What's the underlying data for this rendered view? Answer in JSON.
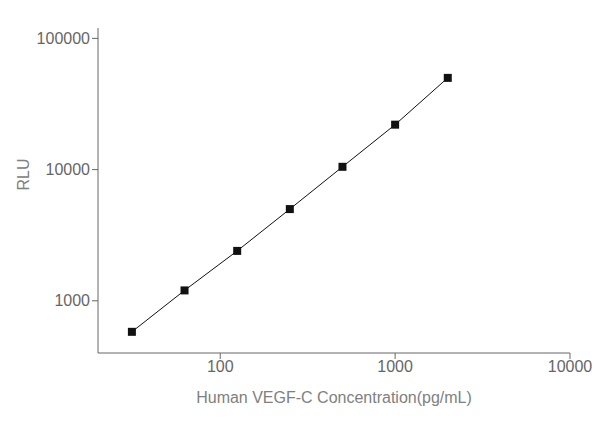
{
  "chart_data": {
    "type": "line",
    "x": [
      31.25,
      62.5,
      125,
      250,
      500,
      1000,
      2000
    ],
    "values": [
      580,
      1200,
      2400,
      5000,
      10500,
      22000,
      50000
    ],
    "xlabel": "Human VEGF-C Concentration(pg/mL)",
    "ylabel": "RLU",
    "xlim": [
      20,
      10000
    ],
    "ylim": [
      400,
      120000
    ],
    "xticks": [
      100,
      1000,
      10000
    ],
    "yticks": [
      1000,
      10000,
      100000
    ],
    "log": true,
    "grid": false,
    "color": "#111111",
    "marker": "square"
  }
}
